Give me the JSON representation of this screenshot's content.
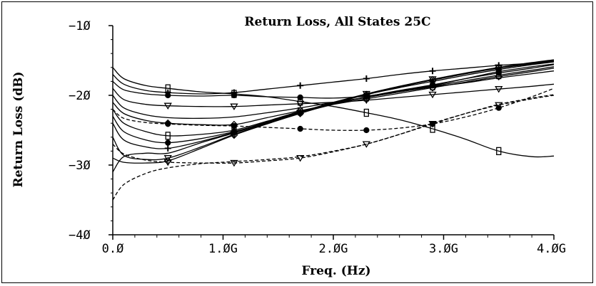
{
  "chart_data": {
    "type": "line",
    "title": "Return Loss, All States 25C",
    "xlabel": "Freq. (Hz)",
    "ylabel": "Return Loss (dB)",
    "xlim": [
      0,
      4
    ],
    "ylim": [
      -40,
      -10
    ],
    "x_ticks": [
      {
        "value": 0,
        "label": "0.Ø"
      },
      {
        "value": 1,
        "label": "1.ØG"
      },
      {
        "value": 2,
        "label": "2.ØG"
      },
      {
        "value": 3,
        "label": "3.ØG"
      },
      {
        "value": 4,
        "label": "4.ØG"
      }
    ],
    "y_ticks": [
      {
        "value": -10,
        "label": "−1Ø"
      },
      {
        "value": -20,
        "label": "−2Ø"
      },
      {
        "value": -30,
        "label": "−3Ø"
      },
      {
        "value": -40,
        "label": "−4Ø"
      }
    ],
    "marker_x": [
      0.5,
      1.1,
      1.7,
      2.3,
      2.9,
      3.5
    ],
    "grid": false,
    "line_color": "#000000",
    "series": [
      {
        "style": "solid",
        "marker": "square",
        "x": [
          0,
          0.1,
          0.3,
          0.5,
          0.8,
          1.1,
          1.4,
          1.7,
          2.0,
          2.3,
          2.6,
          2.9,
          3.2,
          3.5,
          3.8,
          4.0
        ],
        "y": [
          -16,
          -17.6,
          -18.6,
          -19.0,
          -19.5,
          -19.8,
          -20.2,
          -20.9,
          -21.6,
          -22.5,
          -23.5,
          -24.8,
          -26.3,
          -28.0,
          -28.8,
          -28.7
        ]
      },
      {
        "style": "solid",
        "marker": "plus",
        "x": [
          0,
          0.1,
          0.3,
          0.5,
          0.8,
          1.1,
          1.4,
          1.7,
          2.0,
          2.3,
          2.6,
          2.9,
          3.2,
          3.5,
          3.8,
          4.0
        ],
        "y": [
          -17,
          -18.4,
          -19.3,
          -19.6,
          -19.8,
          -19.6,
          -19.1,
          -18.6,
          -18.1,
          -17.6,
          -17.0,
          -16.5,
          -16.1,
          -15.7,
          -15.4,
          -15.2
        ]
      },
      {
        "style": "solid",
        "marker": "circle",
        "x": [
          0,
          0.1,
          0.3,
          0.5,
          0.8,
          1.1,
          1.4,
          1.7,
          2.0,
          2.3,
          2.6,
          2.9,
          3.2,
          3.5,
          3.8,
          4.0
        ],
        "y": [
          -18,
          -19.2,
          -19.8,
          -20.0,
          -20.1,
          -20.0,
          -20.2,
          -20.3,
          -20.4,
          -20.1,
          -19.4,
          -18.6,
          -17.6,
          -16.6,
          -15.9,
          -15.5
        ]
      },
      {
        "style": "solid",
        "marker": "triangle",
        "x": [
          0,
          0.1,
          0.3,
          0.5,
          0.8,
          1.1,
          1.4,
          1.7,
          2.0,
          2.3,
          2.6,
          2.9,
          3.2,
          3.5,
          3.8,
          4.0
        ],
        "y": [
          -19,
          -20.6,
          -21.3,
          -21.5,
          -21.6,
          -21.6,
          -21.4,
          -21.2,
          -21.0,
          -20.7,
          -20.3,
          -19.9,
          -19.5,
          -19.1,
          -18.7,
          -18.4
        ]
      },
      {
        "style": "solid",
        "marker": "none",
        "x": [
          0,
          0.1,
          0.3,
          0.5,
          0.8,
          1.1,
          1.4,
          1.7,
          2.0,
          2.3,
          2.6,
          2.9,
          3.2,
          3.5,
          3.8,
          4.0
        ],
        "y": [
          -20,
          -21.8,
          -22.8,
          -23.2,
          -23.3,
          -23.1,
          -22.5,
          -21.8,
          -21.0,
          -20.3,
          -19.5,
          -18.8,
          -18.2,
          -17.5,
          -16.9,
          -16.5
        ]
      },
      {
        "style": "solid",
        "marker": "diamond",
        "x": [
          0,
          0.1,
          0.3,
          0.5,
          0.8,
          1.1,
          1.4,
          1.7,
          2.0,
          2.3,
          2.6,
          2.9,
          3.2,
          3.5,
          3.8,
          4.0
        ],
        "y": [
          -21,
          -22.6,
          -23.6,
          -24.0,
          -24.2,
          -24.2,
          -23.2,
          -22.2,
          -21.3,
          -20.5,
          -19.7,
          -18.9,
          -18.1,
          -17.3,
          -16.6,
          -16.1
        ]
      },
      {
        "style": "solid",
        "marker": "square",
        "x": [
          0,
          0.1,
          0.3,
          0.5,
          0.8,
          1.1,
          1.4,
          1.7,
          2.0,
          2.3,
          2.6,
          2.9,
          3.2,
          3.5,
          3.8,
          4.0
        ],
        "y": [
          -22,
          -24.0,
          -25.2,
          -25.8,
          -25.6,
          -25.0,
          -23.7,
          -22.3,
          -21.2,
          -20.3,
          -19.5,
          -18.7,
          -17.9,
          -17.1,
          -16.4,
          -15.9
        ]
      },
      {
        "style": "solid",
        "marker": "circle",
        "x": [
          0,
          0.1,
          0.3,
          0.5,
          0.8,
          1.1,
          1.4,
          1.7,
          2.0,
          2.3,
          2.6,
          2.9,
          3.2,
          3.5,
          3.8,
          4.0
        ],
        "y": [
          -23,
          -25.2,
          -26.4,
          -26.8,
          -26.2,
          -25.2,
          -23.9,
          -22.5,
          -21.3,
          -20.2,
          -19.3,
          -18.5,
          -17.6,
          -16.8,
          -16.1,
          -15.6
        ]
      },
      {
        "style": "solid",
        "marker": "plus",
        "x": [
          0,
          0.1,
          0.3,
          0.5,
          0.8,
          1.1,
          1.4,
          1.7,
          2.0,
          2.3,
          2.6,
          2.9,
          3.2,
          3.5,
          3.8,
          4.0
        ],
        "y": [
          -24,
          -26.4,
          -27.4,
          -27.6,
          -26.6,
          -25.3,
          -23.8,
          -22.4,
          -21.1,
          -19.9,
          -18.9,
          -18.0,
          -17.1,
          -16.3,
          -15.6,
          -15.2
        ]
      },
      {
        "style": "solid",
        "marker": "triangle",
        "x": [
          0,
          0.1,
          0.3,
          0.5,
          0.8,
          1.1,
          1.4,
          1.7,
          2.0,
          2.3,
          2.6,
          2.9,
          3.2,
          3.5,
          3.8,
          4.0
        ],
        "y": [
          -26,
          -28.6,
          -29.2,
          -29.0,
          -27.4,
          -25.6,
          -24.0,
          -22.5,
          -21.1,
          -19.8,
          -18.7,
          -17.7,
          -16.8,
          -16.0,
          -15.3,
          -14.9
        ]
      },
      {
        "style": "solid",
        "marker": "diamond",
        "x": [
          0,
          0.1,
          0.3,
          0.5,
          0.8,
          1.1,
          1.4,
          1.7,
          2.0,
          2.3,
          2.6,
          2.9,
          3.2,
          3.5,
          3.8,
          4.0
        ],
        "y": [
          -29,
          -29.6,
          -29.7,
          -29.4,
          -27.6,
          -25.7,
          -24.1,
          -22.6,
          -21.2,
          -19.9,
          -18.8,
          -17.8,
          -16.9,
          -16.0,
          -15.4,
          -15.0
        ]
      },
      {
        "style": "solid",
        "marker": "none",
        "x": [
          0,
          0.1,
          0.3,
          0.5,
          0.8,
          1.1,
          1.4,
          1.7,
          2.0,
          2.3,
          2.6,
          2.9,
          3.2,
          3.5,
          3.8,
          4.0
        ],
        "y": [
          -31,
          -28.8,
          -28.3,
          -28.3,
          -26.8,
          -25.4,
          -23.9,
          -22.4,
          -21.0,
          -19.8,
          -18.7,
          -17.8,
          -16.9,
          -16.1,
          -15.5,
          -15.1
        ]
      },
      {
        "style": "dashed",
        "marker": "circle",
        "x": [
          0,
          0.1,
          0.3,
          0.5,
          0.8,
          1.1,
          1.4,
          1.7,
          2.0,
          2.3,
          2.6,
          2.9,
          3.2,
          3.5,
          3.8,
          4.0
        ],
        "y": [
          -22,
          -23.3,
          -23.9,
          -24.1,
          -24.3,
          -24.4,
          -24.6,
          -24.8,
          -25.0,
          -25.0,
          -24.7,
          -24.1,
          -23.1,
          -21.8,
          -20.2,
          -19.0
        ]
      },
      {
        "style": "dashed",
        "marker": "triangle",
        "x": [
          0,
          0.1,
          0.3,
          0.5,
          0.8,
          1.1,
          1.4,
          1.7,
          2.0,
          2.3,
          2.6,
          2.9,
          3.2,
          3.5,
          3.8,
          4.0
        ],
        "y": [
          -27,
          -28.4,
          -29.3,
          -29.6,
          -29.7,
          -29.7,
          -29.4,
          -29.0,
          -28.1,
          -27.0,
          -25.6,
          -24.1,
          -22.6,
          -21.4,
          -20.5,
          -20.0
        ]
      },
      {
        "style": "dashed",
        "marker": "none",
        "x": [
          0,
          0.1,
          0.3,
          0.5,
          0.8,
          1.1,
          1.4,
          1.7,
          2.0,
          2.3,
          2.6,
          2.9,
          3.2,
          3.5,
          3.8,
          4.0
        ],
        "y": [
          -35,
          -32.8,
          -31.2,
          -30.4,
          -29.8,
          -29.5,
          -29.2,
          -28.8,
          -28.0,
          -27.0,
          -25.6,
          -24.0,
          -22.6,
          -21.3,
          -20.4,
          -19.9
        ]
      }
    ]
  }
}
